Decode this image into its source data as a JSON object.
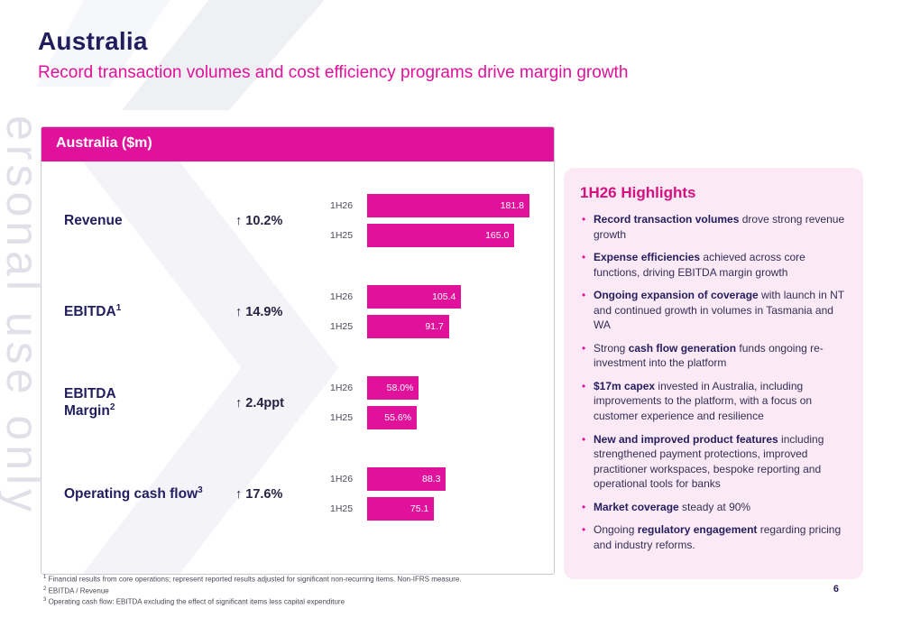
{
  "watermark": "ersonal use only",
  "header": {
    "title": "Australia",
    "subtitle": "Record transaction volumes and cost efficiency programs drive margin growth"
  },
  "chart_data": {
    "type": "bar",
    "orientation": "horizontal",
    "title": "Australia ($m)",
    "series_labels": [
      "1H26",
      "1H25"
    ],
    "x_max": 181.8,
    "metrics": [
      {
        "label": "Revenue",
        "footnote": "",
        "change": "↑ 10.2%",
        "values": [
          181.8,
          165.0
        ],
        "value_labels": [
          "181.8",
          "165.0"
        ]
      },
      {
        "label": "EBITDA",
        "footnote": "1",
        "change": "↑ 14.9%",
        "values": [
          105.4,
          91.7
        ],
        "value_labels": [
          "105.4",
          "91.7"
        ]
      },
      {
        "label": "EBITDA\nMargin",
        "footnote": "2",
        "change": "↑ 2.4ppt",
        "values": [
          58.0,
          55.6
        ],
        "value_labels": [
          "58.0%",
          "55.6%"
        ]
      },
      {
        "label": "Operating cash flow",
        "footnote": "3",
        "change": "↑ 17.6%",
        "values": [
          88.3,
          75.1
        ],
        "value_labels": [
          "88.3",
          "75.1"
        ]
      }
    ]
  },
  "highlights": {
    "title": "1H26 Highlights",
    "items": [
      {
        "segments": [
          {
            "bold": true,
            "text": "Record transaction volumes"
          },
          {
            "bold": false,
            "text": " drove strong revenue growth"
          }
        ]
      },
      {
        "segments": [
          {
            "bold": true,
            "text": "Expense efficiencies"
          },
          {
            "bold": false,
            "text": " achieved across core functions, driving EBITDA margin growth"
          }
        ]
      },
      {
        "segments": [
          {
            "bold": true,
            "text": "Ongoing expansion of coverage"
          },
          {
            "bold": false,
            "text": " with launch in NT and continued growth in volumes in Tasmania and WA"
          }
        ]
      },
      {
        "segments": [
          {
            "bold": false,
            "text": "Strong "
          },
          {
            "bold": true,
            "text": "cash flow generation"
          },
          {
            "bold": false,
            "text": " funds ongoing re-investment into the platform"
          }
        ]
      },
      {
        "segments": [
          {
            "bold": true,
            "text": "$17m capex"
          },
          {
            "bold": false,
            "text": " invested in Australia, including improvements to the platform, with a focus on customer experience and resilience"
          }
        ]
      },
      {
        "segments": [
          {
            "bold": true,
            "text": "New and improved product features"
          },
          {
            "bold": false,
            "text": " including strengthened payment protections, improved practitioner workspaces, bespoke reporting and operational tools for banks"
          }
        ]
      },
      {
        "segments": [
          {
            "bold": true,
            "text": "Market coverage"
          },
          {
            "bold": false,
            "text": " steady at 90%"
          }
        ]
      },
      {
        "segments": [
          {
            "bold": false,
            "text": "Ongoing "
          },
          {
            "bold": true,
            "text": "regulatory engagement"
          },
          {
            "bold": false,
            "text": " regarding pricing and industry reforms."
          }
        ]
      }
    ]
  },
  "footnotes": [
    {
      "num": "1",
      "text": "Financial results from core operations; represent reported results adjusted for significant non-recurring items. Non-IFRS measure."
    },
    {
      "num": "2",
      "text": "EBITDA / Revenue"
    },
    {
      "num": "3",
      "text": "Operating cash flow: EBITDA excluding the effect of significant items less capital expenditure"
    }
  ],
  "page_number": "6",
  "colors": {
    "accent": "#e0119b",
    "navy": "#221e5e",
    "highlight_bg": "#fce9f6",
    "highlight_title": "#d6107f"
  }
}
